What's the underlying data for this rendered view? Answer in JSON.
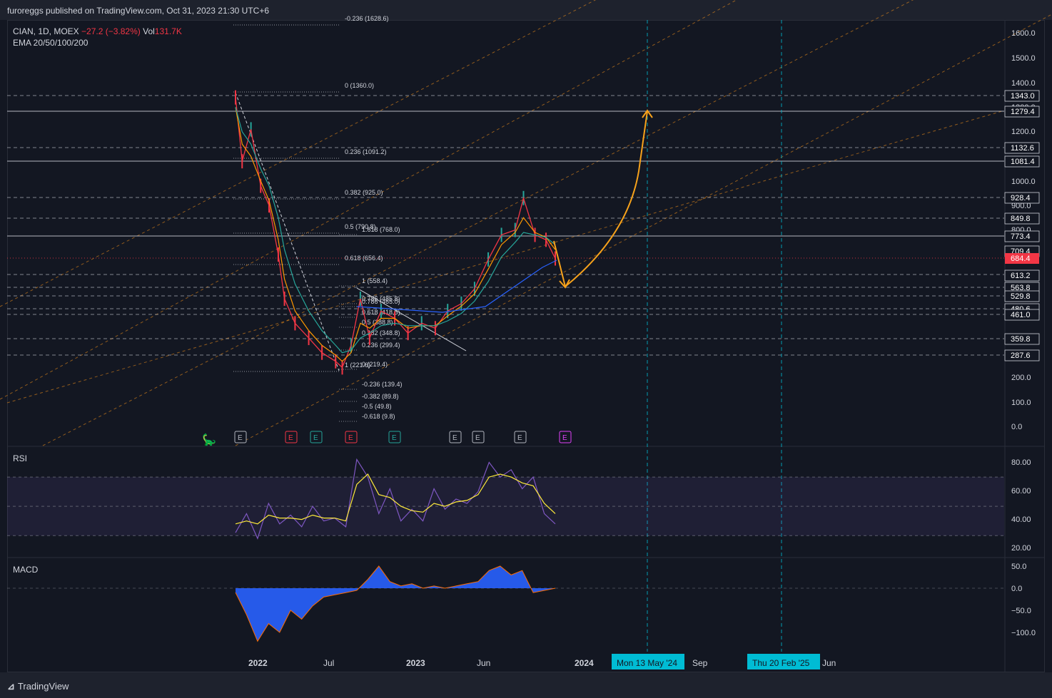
{
  "header": {
    "publisher_text": "furoreggs published on TradingView.com, Oct 31, 2023 21:30 UTC+6"
  },
  "legend": {
    "symbol": "CIAN, 1D, MOEX",
    "change": "−27.2 (−3.82%)",
    "vol_label": "Vol",
    "vol_value": "131.7K",
    "ema_label": "EMA 20/50/100/200"
  },
  "footer": {
    "brand": "TradingView"
  },
  "colors": {
    "background": "#131722",
    "up": "#26a69a",
    "down": "#f23645",
    "fib": "#b2b5be",
    "channel": "#f7931a",
    "arrow": "#f7a21b",
    "rsi": "#7e57c2",
    "rsi_ma": "#ffeb3b",
    "macd_hist": "#2962ff",
    "date_badge": "#00bcd4",
    "price_badge": "#f23645"
  },
  "chart_data": [
    {
      "type": "candlestick",
      "title": "CIAN, 1D, MOEX",
      "y_ticks": [
        "1600.0",
        "1500.0",
        "1400.0",
        "1300.0",
        "1200.0",
        "1000.0",
        "900.0",
        "800.0",
        "700.0",
        "200.0",
        "100.0",
        "0.0"
      ],
      "x_ticks": [
        "2022",
        "Jul",
        "2023",
        "Jun",
        "2024",
        "Sep",
        "Jun"
      ],
      "date_badges": [
        "Mon 13 May '24",
        "Thu 20 Feb '25"
      ],
      "price_badges": [
        "1343.0",
        "1279.4",
        "1132.6",
        "1081.4",
        "928.4",
        "849.8",
        "773.4",
        "709.4",
        "684.4",
        "613.2",
        "563.8",
        "529.8",
        "480.6",
        "461.0",
        "359.8",
        "287.6"
      ],
      "current_price": "684.4",
      "fib_retracement_1": [
        "-0.236 (1628.6)",
        "0 (1360.0)",
        "0.236 (1091.2)",
        "0.382 (925.0)",
        "0.5 (790.8)",
        "0.618 (656.4)",
        "1 (221.6)"
      ],
      "fib_extension_2": [
        "1.618 (768.0)",
        "1 (558.4)",
        "0.786 (485.8)",
        "0.786 (465.0)",
        "0.618 (418.8)",
        "0.5 (388.8)",
        "0.382 (348.8)",
        "0.236 (299.4)",
        "0 (219.4)",
        "-0.236 (139.4)",
        "-0.382 (89.8)",
        "-0.5 (49.8)",
        "-0.618 (9.8)"
      ],
      "ylim": [
        0,
        1650
      ],
      "price_series": {
        "x": [
          "2021-11-05",
          "2021-11-20",
          "2021-12-10",
          "2022-01-01",
          "2022-01-20",
          "2022-02-10",
          "2022-02-24",
          "2022-03-20",
          "2022-04-20",
          "2022-05-20",
          "2022-06-20",
          "2022-07-05",
          "2022-07-25",
          "2022-08-15",
          "2022-09-05",
          "2022-10-01",
          "2022-11-01",
          "2022-12-01",
          "2023-01-01",
          "2023-02-01",
          "2023-03-01",
          "2023-04-01",
          "2023-05-01",
          "2023-06-01",
          "2023-07-01",
          "2023-08-01",
          "2023-08-20",
          "2023-09-15",
          "2023-10-10",
          "2023-10-31"
        ],
        "y": [
          1340,
          1080,
          1210,
          980,
          900,
          700,
          520,
          420,
          360,
          300,
          265,
          240,
          330,
          520,
          360,
          470,
          440,
          380,
          420,
          400,
          470,
          500,
          560,
          680,
          780,
          800,
          930,
          780,
          760,
          684
        ]
      },
      "ema_20": [
        1300,
        1150,
        1100,
        1000,
        920,
        760,
        600,
        470,
        390,
        330,
        290,
        265,
        300,
        420,
        400,
        440,
        440,
        400,
        410,
        410,
        450,
        490,
        540,
        640,
        740,
        790,
        850,
        790,
        770,
        720
      ],
      "ema_50": [
        1300,
        1200,
        1150,
        1050,
        980,
        850,
        720,
        580,
        470,
        390,
        330,
        300,
        310,
        360,
        380,
        410,
        420,
        410,
        410,
        410,
        430,
        460,
        510,
        590,
        690,
        750,
        790,
        780,
        770,
        740
      ],
      "annotations": {
        "projection_target": "1279.4",
        "projection_low": "~560"
      }
    },
    {
      "type": "line",
      "title": "RSI",
      "ylim": [
        15,
        90
      ],
      "y_ticks": [
        "80.00",
        "60.00",
        "40.00",
        "20.00"
      ],
      "bands": [
        30,
        50,
        70
      ],
      "series": [
        {
          "values": [
            32,
            45,
            28,
            52,
            38,
            44,
            36,
            50,
            40,
            42,
            36,
            82,
            70,
            45,
            62,
            40,
            48,
            40,
            62,
            48,
            55,
            52,
            60,
            80,
            70,
            75,
            62,
            70,
            45,
            38
          ]
        },
        {
          "values": [
            38,
            40,
            38,
            44,
            42,
            42,
            41,
            44,
            42,
            42,
            40,
            65,
            72,
            58,
            56,
            50,
            47,
            46,
            52,
            50,
            53,
            54,
            58,
            70,
            72,
            70,
            66,
            64,
            52,
            45
          ]
        }
      ]
    },
    {
      "type": "area",
      "title": "MACD",
      "ylim": [
        -130,
        60
      ],
      "y_ticks": [
        "50.0",
        "0.0",
        "−50.0",
        "−100.0"
      ],
      "series": [
        {
          "values": [
            -10,
            -60,
            -120,
            -80,
            -100,
            -50,
            -70,
            -40,
            -20,
            -15,
            -10,
            -5,
            20,
            50,
            15,
            5,
            10,
            0,
            5,
            0,
            5,
            10,
            15,
            40,
            50,
            30,
            40,
            -10,
            -5,
            0
          ]
        }
      ]
    }
  ]
}
